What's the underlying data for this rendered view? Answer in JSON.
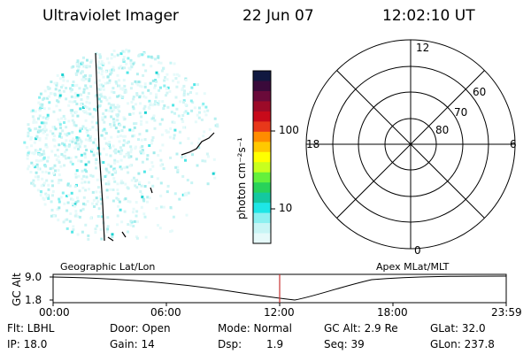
{
  "header": {
    "instrument": "Ultraviolet Imager",
    "date": "22 Jun 07",
    "time": "12:02:10 UT"
  },
  "colorbar": {
    "unit_label": "photon cm⁻²s⁻¹",
    "tick_labels": [
      "100",
      "10"
    ],
    "colors": [
      "#101840",
      "#3a0a3a",
      "#6a0a3a",
      "#9c0a28",
      "#c80a1a",
      "#e8381a",
      "#ff8c00",
      "#ffc800",
      "#ffff00",
      "#c8ff1e",
      "#64f03c",
      "#28d25a",
      "#14c8a0",
      "#1ee6e6",
      "#8cf0f0",
      "#c8f5f5",
      "#e6fafa"
    ]
  },
  "polar_plot": {
    "mlt_labels": {
      "top": "12",
      "bottom": "0",
      "left": "18",
      "right": "6"
    },
    "lat_labels": [
      "60",
      "70",
      "80"
    ]
  },
  "timeline": {
    "left_label": "Geographic Lat/Lon",
    "right_label": "Apex MLat/MLT",
    "y_axis_label": "GC Alt",
    "y_ticks": [
      "9.0",
      "1.8"
    ],
    "x_ticks": [
      "00:00",
      "06:00",
      "12:00",
      "18:00",
      "23:59"
    ],
    "cursor_color": "#c83232"
  },
  "status": {
    "flt": "Flt: LBHL",
    "door": "Door: Open",
    "mode": "Mode: Normal",
    "gc_alt": "GC Alt: 2.9 Re",
    "glat": "GLat: 32.0",
    "ip": "IP: 18.0",
    "gain": "Gain: 14",
    "dsp_label": "Dsp:",
    "dsp_value": "1.9",
    "seq": "Seq: 39",
    "glon": "GLon: 237.8"
  }
}
